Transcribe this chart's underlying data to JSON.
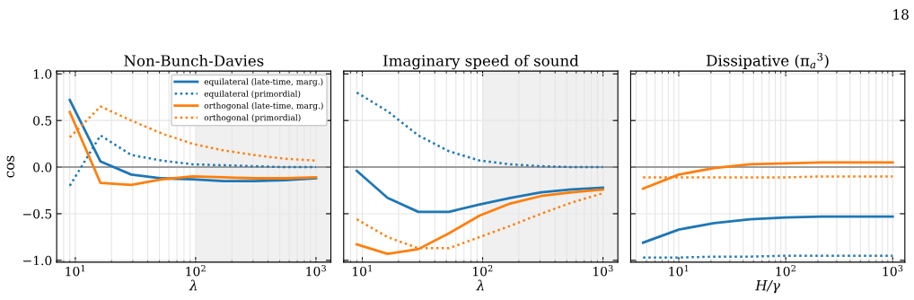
{
  "chart_data": [
    {
      "type": "line",
      "title": "Non-Bunch-Davies",
      "xlabel": "λ",
      "ylabel": "cos",
      "log": "x",
      "xlim": [
        7,
        1330
      ],
      "xticks": [
        {
          "value": 10,
          "label": "10$^{1}$"
        },
        {
          "value": 100,
          "label": "10$^{2}$"
        },
        {
          "value": 1000,
          "label": "10$^{3}$"
        }
      ],
      "ylim": [
        -1.02,
        1.03
      ],
      "yticks": [
        {
          "value": -1.0,
          "label": "−1.0"
        },
        {
          "value": -0.5,
          "label": "−0.5"
        },
        {
          "value": 0.0,
          "label": "0.0"
        },
        {
          "value": 0.5,
          "label": "0.5"
        },
        {
          "value": 1.0,
          "label": "1.0"
        }
      ],
      "x": [
        9,
        16.2,
        29.2,
        52.5,
        94.5,
        170,
        306,
        551,
        1000
      ],
      "grid": true,
      "legend": "top right",
      "ref_lines": [
        {
          "axis": "y",
          "value": 0,
          "color": "#808080"
        }
      ],
      "bands": [
        {
          "axis": "x",
          "from": 100,
          "to": 1330,
          "color": "#f0f0f0"
        }
      ],
      "series": [
        {
          "name": "equilateral (late-time, marg.)",
          "color": "#1f77b4",
          "line_style": "solid",
          "values": [
            0.72,
            0.06,
            -0.08,
            -0.12,
            -0.13,
            -0.15,
            -0.15,
            -0.14,
            -0.12
          ]
        },
        {
          "name": "equilateral (primordial)",
          "color": "#1f77b4",
          "line_style": "dotted",
          "values": [
            -0.2,
            0.34,
            0.13,
            0.07,
            0.03,
            0.02,
            0.01,
            0.0,
            0.0
          ]
        },
        {
          "name": "orthogonal (late-time, marg.)",
          "color": "#ff7f0e",
          "line_style": "solid",
          "values": [
            0.59,
            -0.17,
            -0.19,
            -0.13,
            -0.1,
            -0.11,
            -0.12,
            -0.12,
            -0.11
          ]
        },
        {
          "name": "orthogonal (primordial)",
          "color": "#ff7f0e",
          "line_style": "dotted",
          "values": [
            0.32,
            0.65,
            0.5,
            0.36,
            0.25,
            0.18,
            0.13,
            0.09,
            0.07
          ]
        }
      ]
    },
    {
      "type": "line",
      "title": "Imaginary speed of sound",
      "xlabel": "λ",
      "log": "x",
      "tick_labels": "x",
      "xlim": [
        7,
        1330
      ],
      "xticks": [
        {
          "value": 10,
          "label": "10$^{1}$"
        },
        {
          "value": 100,
          "label": "10$^{2}$"
        },
        {
          "value": 1000,
          "label": "10$^{3}$"
        }
      ],
      "ylim": [
        -1.02,
        1.03
      ],
      "yticks": [
        {
          "value": -1.0,
          "label": null
        },
        {
          "value": -0.5,
          "label": null
        },
        {
          "value": 0.0,
          "label": null
        },
        {
          "value": 0.5,
          "label": null
        },
        {
          "value": 1.0,
          "label": null
        }
      ],
      "x": [
        9,
        16.2,
        29.2,
        52.5,
        94.5,
        170,
        306,
        551,
        1000
      ],
      "grid": true,
      "ref_lines": [
        {
          "axis": "y",
          "value": 0,
          "color": "#808080"
        }
      ],
      "bands": [
        {
          "axis": "x",
          "from": 100,
          "to": 1330,
          "color": "#f0f0f0"
        }
      ],
      "series": [
        {
          "color": "#1f77b4",
          "line_style": "solid",
          "values": [
            -0.04,
            -0.33,
            -0.48,
            -0.48,
            -0.4,
            -0.33,
            -0.27,
            -0.24,
            -0.22
          ]
        },
        {
          "color": "#1f77b4",
          "line_style": "dotted",
          "values": [
            0.8,
            0.6,
            0.34,
            0.17,
            0.07,
            0.03,
            0.01,
            0.0,
            0.0
          ]
        },
        {
          "color": "#ff7f0e",
          "line_style": "solid",
          "values": [
            -0.83,
            -0.93,
            -0.88,
            -0.71,
            -0.52,
            -0.39,
            -0.31,
            -0.27,
            -0.24
          ]
        },
        {
          "color": "#ff7f0e",
          "line_style": "dotted",
          "values": [
            -0.56,
            -0.75,
            -0.87,
            -0.87,
            -0.75,
            -0.63,
            -0.5,
            -0.38,
            -0.28
          ]
        }
      ]
    },
    {
      "type": "line",
      "title": "Dissipative (π$_{a}$$^{3}$)",
      "xlabel": "H/γ",
      "log": "x",
      "tick_labels": "x",
      "xlim": [
        3.55,
        1300
      ],
      "xticks": [
        {
          "value": 10,
          "label": "10$^{1}$"
        },
        {
          "value": 100,
          "label": "10$^{2}$"
        },
        {
          "value": 1000,
          "label": "10$^{3}$"
        }
      ],
      "ylim": [
        -1.02,
        1.03
      ],
      "yticks": [
        {
          "value": -1.0,
          "label": null
        },
        {
          "value": -0.5,
          "label": null
        },
        {
          "value": 0.0,
          "label": null
        },
        {
          "value": 0.5,
          "label": null
        },
        {
          "value": 1.0,
          "label": null
        }
      ],
      "x": [
        4.64,
        10,
        21.5,
        46.4,
        100,
        215,
        464,
        1000
      ],
      "grid": true,
      "annotations": [
        "18"
      ],
      "ref_lines": [
        {
          "axis": "y",
          "value": 0,
          "color": "#808080"
        }
      ],
      "series": [
        {
          "color": "#1f77b4",
          "line_style": "solid",
          "values": [
            -0.81,
            -0.67,
            -0.6,
            -0.56,
            -0.54,
            -0.53,
            -0.53,
            -0.53
          ]
        },
        {
          "color": "#1f77b4",
          "line_style": "dotted",
          "values": [
            -0.97,
            -0.97,
            -0.96,
            -0.96,
            -0.95,
            -0.95,
            -0.95,
            -0.95
          ]
        },
        {
          "color": "#ff7f0e",
          "line_style": "solid",
          "values": [
            -0.23,
            -0.08,
            -0.01,
            0.03,
            0.04,
            0.05,
            0.05,
            0.05
          ]
        },
        {
          "color": "#ff7f0e",
          "line_style": "dotted",
          "values": [
            -0.11,
            -0.11,
            -0.11,
            -0.11,
            -0.11,
            -0.1,
            -0.1,
            -0.1
          ]
        }
      ]
    }
  ]
}
